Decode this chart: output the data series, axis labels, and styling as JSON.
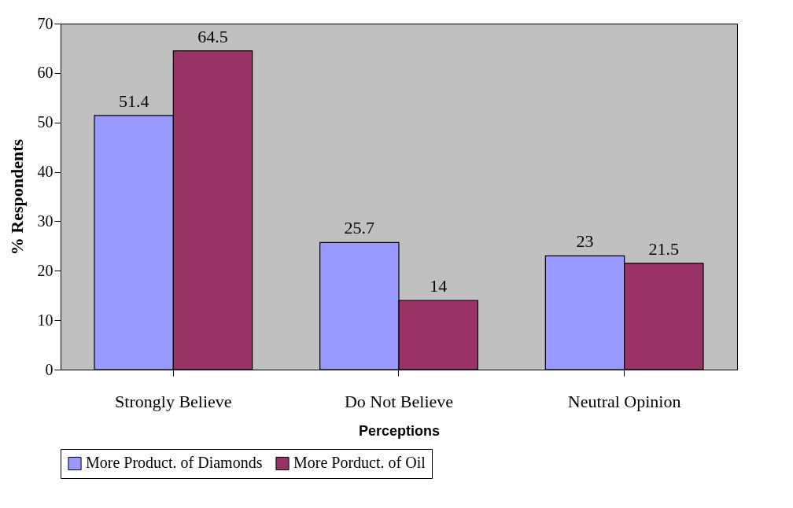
{
  "chart_data": {
    "type": "bar",
    "xlabel": "Perceptions",
    "ylabel": "% Respondents",
    "categories": [
      "Strongly Believe",
      "Do Not Believe",
      "Neutral Opinion"
    ],
    "series": [
      {
        "name": "More Product. of Diamonds",
        "color": "#9999ff",
        "values": [
          51.4,
          25.7,
          23
        ]
      },
      {
        "name": "More Porduct. of Oil",
        "color": "#993366",
        "values": [
          64.5,
          14,
          21.5
        ]
      }
    ],
    "ylim": [
      0,
      70
    ],
    "yticks": [
      0,
      10,
      20,
      30,
      40,
      50,
      60,
      70
    ],
    "grid": false,
    "legend": "bottom",
    "data_labels": true
  }
}
